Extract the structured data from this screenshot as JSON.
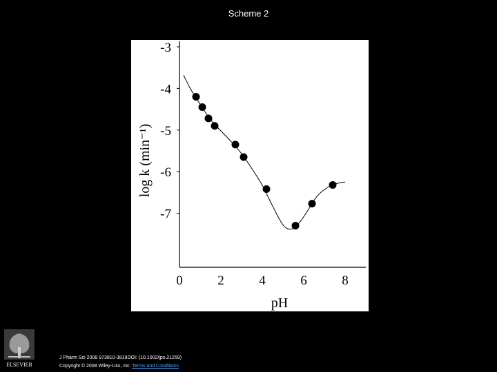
{
  "slide": {
    "title": "Scheme 2"
  },
  "footer": {
    "publisher_logo_text": "ELSEVIER",
    "citation_line": "J Pharm Sci 2008 973810-3819DOI: (10.1002/jps.21259)",
    "copyright_prefix": "Copyright © 2008 Wiley-Liss, Inc.",
    "terms_link": "Terms and Conditions"
  },
  "chart_data": {
    "type": "scatter",
    "title": "",
    "xlabel": "pH",
    "ylabel": "log k (min⁻¹)",
    "xlim": [
      0,
      9
    ],
    "ylim": [
      -8.3,
      -3
    ],
    "x_ticks": [
      0,
      2,
      4,
      6,
      8
    ],
    "x_tick_labels": [
      "0",
      "2",
      "4",
      "6",
      "8"
    ],
    "y_ticks": [
      -3,
      -4,
      -5,
      -6,
      -7
    ],
    "y_tick_labels": [
      "-3",
      "-4",
      "-5",
      "-6",
      "-7"
    ],
    "grid": false,
    "series": [
      {
        "kind": "points",
        "x": [
          0.8,
          1.1,
          1.4,
          1.7,
          2.7,
          3.1,
          4.2,
          5.6,
          6.4,
          7.4
        ],
        "y": [
          -4.2,
          -4.45,
          -4.72,
          -4.9,
          -5.35,
          -5.65,
          -6.42,
          -7.3,
          -6.77,
          -6.32
        ]
      },
      {
        "kind": "fit-curve",
        "x": [
          0.2,
          0.5,
          1.0,
          1.5,
          2.0,
          2.5,
          3.0,
          3.5,
          4.0,
          4.5,
          5.0,
          5.4,
          5.8,
          6.2,
          6.6,
          7.0,
          7.5,
          8.0
        ],
        "y": [
          -3.68,
          -3.98,
          -4.38,
          -4.75,
          -5.02,
          -5.28,
          -5.57,
          -5.93,
          -6.33,
          -6.83,
          -7.28,
          -7.38,
          -7.22,
          -6.93,
          -6.62,
          -6.43,
          -6.3,
          -6.25
        ]
      }
    ],
    "colors": {
      "marker": "#000000",
      "line": "#000000",
      "background": "#ffffff"
    }
  }
}
